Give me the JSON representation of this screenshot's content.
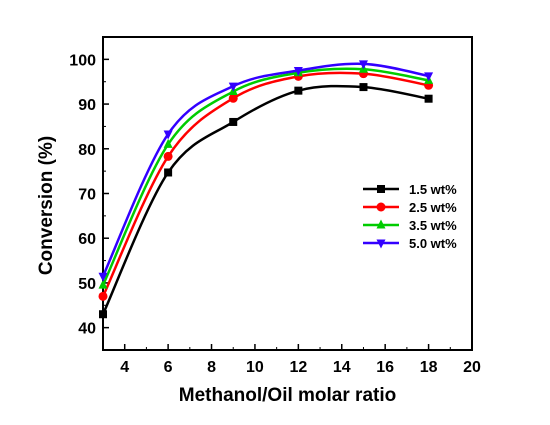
{
  "chart_data": {
    "type": "line",
    "xlabel": "Methanol/Oil molar ratio",
    "ylabel": "Conversion (%)",
    "xlim": [
      3,
      20
    ],
    "ylim": [
      35,
      105
    ],
    "xticks": [
      4,
      6,
      8,
      10,
      12,
      14,
      16,
      18,
      20
    ],
    "yticks": [
      40,
      50,
      60,
      70,
      80,
      90,
      100
    ],
    "legend_position": "right",
    "x": [
      3,
      6,
      9,
      12,
      15,
      18
    ],
    "series": [
      {
        "name": "1.5 wt%",
        "values": [
          43,
          74.7,
          86,
          93,
          93.8,
          91.2
        ],
        "color": "#000000",
        "marker": "square"
      },
      {
        "name": "2.5 wt%",
        "values": [
          47,
          78.3,
          91.3,
          96.2,
          96.8,
          94.2
        ],
        "color": "#ff0000",
        "marker": "circle"
      },
      {
        "name": "3.5 wt%",
        "values": [
          49.5,
          81,
          92.8,
          97,
          97.8,
          95.3
        ],
        "color": "#00cc00",
        "marker": "triangle-up"
      },
      {
        "name": "5.0 wt%",
        "values": [
          51.5,
          83.3,
          94,
          97.5,
          99,
          96.3
        ],
        "color": "#3300ff",
        "marker": "triangle-down"
      }
    ]
  }
}
